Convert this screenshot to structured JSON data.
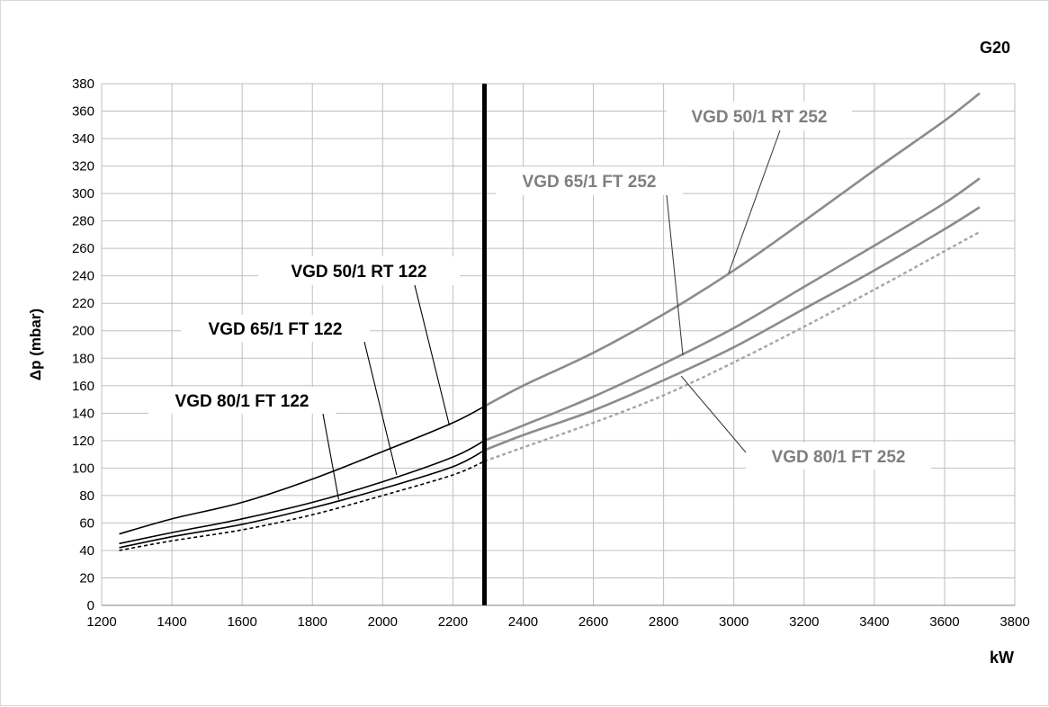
{
  "chart_data": {
    "type": "line",
    "title": "G20",
    "xlabel": "kW",
    "ylabel": "Δp (mbar)",
    "xlim": [
      1200,
      3800
    ],
    "ylim": [
      0,
      380
    ],
    "xticks": [
      1200,
      1400,
      1600,
      1800,
      2000,
      2200,
      2400,
      2600,
      2800,
      3000,
      3200,
      3400,
      3600,
      3800
    ],
    "yticks": [
      0,
      20,
      40,
      60,
      80,
      100,
      120,
      140,
      160,
      180,
      200,
      220,
      240,
      260,
      280,
      300,
      320,
      340,
      360,
      380
    ],
    "grid": true,
    "divider_x": 2290,
    "series": [
      {
        "name": "VGD 50/1 RT 122",
        "color": "#000000",
        "dash": false,
        "x": [
          1250,
          1400,
          1600,
          1800,
          2000,
          2200,
          2290
        ],
        "y": [
          52,
          63,
          75,
          92,
          112,
          133,
          145
        ]
      },
      {
        "name": "VGD 65/1 FT 122",
        "color": "#000000",
        "dash": false,
        "x": [
          1250,
          1400,
          1600,
          1800,
          2000,
          2200,
          2290
        ],
        "y": [
          45,
          53,
          63,
          75,
          90,
          108,
          120
        ]
      },
      {
        "name": "VGD 80/1 FT 122",
        "color": "#000000",
        "dash": false,
        "x": [
          1250,
          1400,
          1600,
          1800,
          2000,
          2200,
          2290
        ],
        "y": [
          42,
          50,
          59,
          71,
          85,
          101,
          113
        ]
      },
      {
        "name": "",
        "color": "#000000",
        "dash": true,
        "x": [
          1250,
          1400,
          1600,
          1800,
          2000,
          2200,
          2290
        ],
        "y": [
          40,
          47,
          55,
          66,
          80,
          95,
          105
        ]
      },
      {
        "name": "VGD 50/1 RT 252",
        "color": "#8c8c8c",
        "dash": false,
        "x": [
          2290,
          2400,
          2600,
          2800,
          3000,
          3200,
          3400,
          3600,
          3700
        ],
        "y": [
          145,
          160,
          184,
          212,
          244,
          280,
          317,
          353,
          373
        ]
      },
      {
        "name": "VGD 65/1 FT 252",
        "color": "#8c8c8c",
        "dash": false,
        "x": [
          2290,
          2400,
          2600,
          2800,
          3000,
          3200,
          3400,
          3600,
          3700
        ],
        "y": [
          120,
          131,
          152,
          176,
          202,
          232,
          262,
          293,
          311
        ]
      },
      {
        "name": "VGD 80/1 FT 252",
        "color": "#8c8c8c",
        "dash": false,
        "x": [
          2290,
          2400,
          2600,
          2800,
          3000,
          3200,
          3400,
          3600,
          3700
        ],
        "y": [
          113,
          124,
          142,
          164,
          188,
          216,
          244,
          274,
          290
        ]
      },
      {
        "name": "",
        "color": "#a6a6a6",
        "dash": true,
        "x": [
          2290,
          2400,
          2600,
          2800,
          3000,
          3200,
          3400,
          3600,
          3700
        ],
        "y": [
          105,
          115,
          133,
          153,
          177,
          203,
          230,
          258,
          272
        ]
      }
    ],
    "annotations": [
      {
        "text": "VGD 50/1 RT 122",
        "color": "#000000",
        "series": 0,
        "point": [
          2190,
          131
        ]
      },
      {
        "text": "VGD 65/1 FT 122",
        "color": "#000000",
        "series": 1,
        "point": [
          2040,
          95
        ]
      },
      {
        "text": "VGD 80/1 FT 122",
        "color": "#000000",
        "series": 2,
        "point": [
          1875,
          77
        ]
      },
      {
        "text": "VGD 50/1 RT 252",
        "color": "#7f7f7f",
        "series": 4,
        "point": [
          2985,
          242
        ]
      },
      {
        "text": "VGD 65/1 FT 252",
        "color": "#7f7f7f",
        "series": 5,
        "point": [
          2855,
          182
        ]
      },
      {
        "text": "VGD 80/1 FT 252",
        "color": "#7f7f7f",
        "series": 6,
        "point": [
          2850,
          167
        ]
      }
    ]
  }
}
